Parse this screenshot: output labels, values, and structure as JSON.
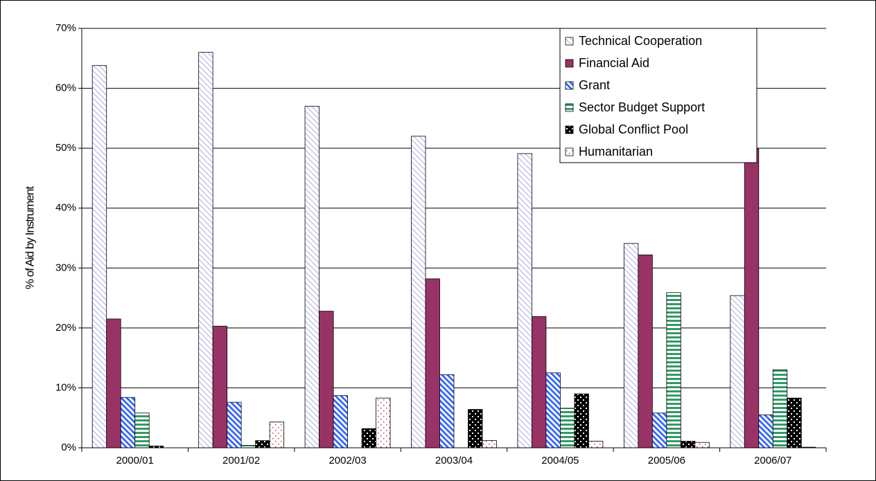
{
  "chart_data": {
    "type": "bar",
    "y_label": "% of Aid by Instrument",
    "categories": [
      "2000/01",
      "2001/02",
      "2002/03",
      "2003/04",
      "2004/05",
      "2005/06",
      "2006/07"
    ],
    "series": [
      {
        "name": "Technical Cooperation",
        "color": "#b8b8e8",
        "pattern": "diagonal-light",
        "values": [
          63.8,
          66,
          57,
          52,
          49.1,
          34.1,
          25.4
        ]
      },
      {
        "name": "Financial Aid",
        "color": "#993366",
        "pattern": "solid",
        "values": [
          21.5,
          20.3,
          22.8,
          28.2,
          21.9,
          32.2,
          50
        ]
      },
      {
        "name": "Grant",
        "color": "#3366ff",
        "pattern": "diagonal",
        "values": [
          8.4,
          7.6,
          8.7,
          12.2,
          12.5,
          5.8,
          5.5
        ]
      },
      {
        "name": "Sector Budget Support",
        "color": "#339966",
        "pattern": "horizontal",
        "values": [
          5.8,
          0.4,
          0,
          0,
          6.6,
          25.9,
          13
        ]
      },
      {
        "name": "Global Conflict Pool",
        "color": "#000000",
        "pattern": "dots",
        "values": [
          0.3,
          1.2,
          3.2,
          6.4,
          9,
          1.1,
          8.3
        ]
      },
      {
        "name": "Humanitarian",
        "color": "#cc3333",
        "pattern": "dots-light",
        "values": [
          0,
          4.3,
          8.3,
          1.2,
          1.1,
          0.9,
          0.1
        ]
      }
    ],
    "ylim": [
      0,
      70
    ],
    "yticks": [
      {
        "value": 0,
        "label": "0%"
      },
      {
        "value": 10,
        "label": "10%"
      },
      {
        "value": 20,
        "label": "20%"
      },
      {
        "value": 30,
        "label": "30%"
      },
      {
        "value": 40,
        "label": "40%"
      },
      {
        "value": 50,
        "label": "50%"
      },
      {
        "value": 60,
        "label": "60%"
      },
      {
        "value": 70,
        "label": "70%"
      }
    ],
    "grid": true,
    "legend": "upper right"
  }
}
